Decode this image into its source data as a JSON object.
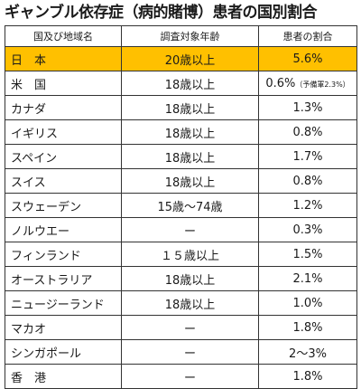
{
  "title": "ギャンブル依存症（病的賭博）患者の国別割合",
  "colors": {
    "highlight": "#ffc000",
    "border": "#333333"
  },
  "table": {
    "headers": [
      "国及び地域名",
      "調査対象年齢",
      "患者の割合"
    ],
    "rows": [
      {
        "country": "日　本",
        "age": "20歳以上",
        "rate": "5.6%",
        "highlight": true
      },
      {
        "country": "米　国",
        "age": "18歳以上",
        "rate": "0.6%",
        "note": "（予備軍2.3%）"
      },
      {
        "country": "カナダ",
        "age": "18歳以上",
        "rate": "1.3%"
      },
      {
        "country": "イギリス",
        "age": "18歳以上",
        "rate": "0.8%"
      },
      {
        "country": "スペイン",
        "age": "18歳以上",
        "rate": "1.7%"
      },
      {
        "country": "スイス",
        "age": "18歳以上",
        "rate": "0.8%"
      },
      {
        "country": "スウェーデン",
        "age": "15歳～74歳",
        "rate": "1.2%"
      },
      {
        "country": "ノルウエー",
        "age": "ー",
        "rate": "0.3%"
      },
      {
        "country": "フィンランド",
        "age": "１５歳以上",
        "rate": "1.5%"
      },
      {
        "country": "オーストラリア",
        "age": "18歳以上",
        "rate": "2.1%"
      },
      {
        "country": "ニュージーランド",
        "age": "18歳以上",
        "rate": "1.0%"
      },
      {
        "country": "マカオ",
        "age": "ー",
        "rate": "1.8%"
      },
      {
        "country": "シンガポール",
        "age": "ー",
        "rate": "2～3%"
      },
      {
        "country": "香　港",
        "age": "ー",
        "rate": "1.8%"
      }
    ]
  }
}
